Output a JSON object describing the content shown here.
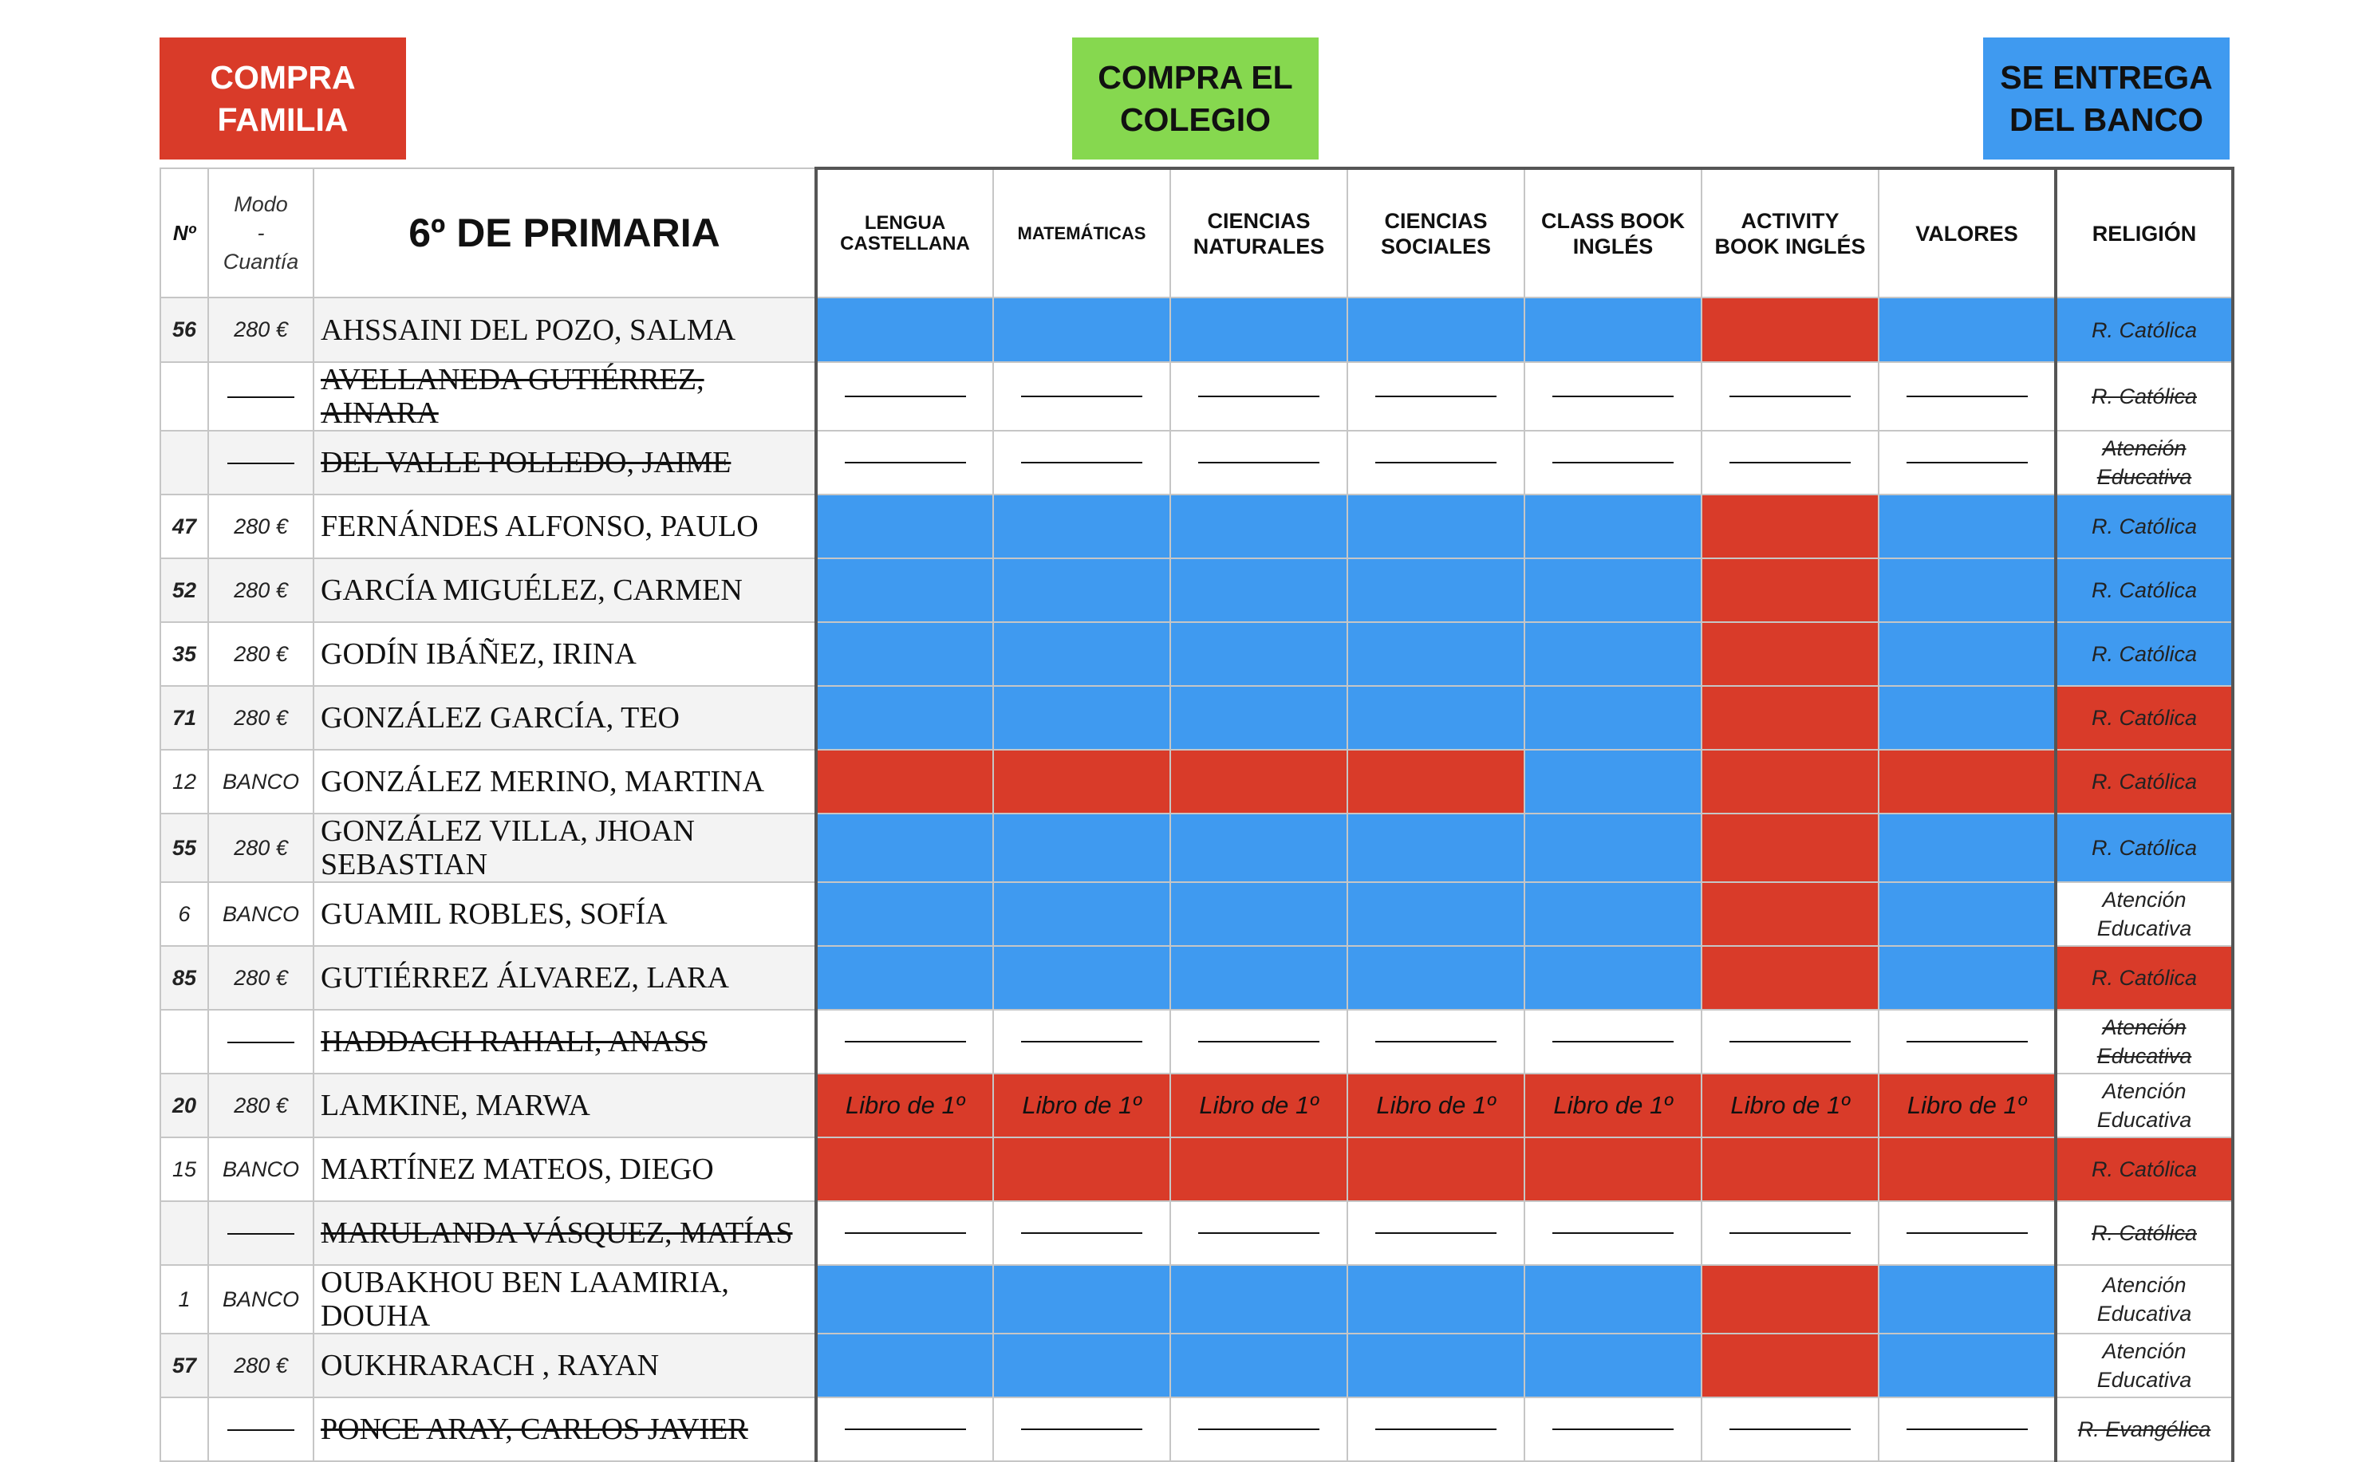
{
  "legend": {
    "family": "COMPRA\nFAMILIA",
    "school": "COMPRA EL\nCOLEGIO",
    "bank": "SE ENTREGA\nDEL BANCO"
  },
  "colors": {
    "family_red": "#d93b29",
    "school_green": "#86d84f",
    "bank_blue": "#3f9af0"
  },
  "header": {
    "no": "Nº",
    "modo": "Modo\n-\nCuantía",
    "title": "6º DE PRIMARIA",
    "subjects": [
      "LENGUA\nCASTELLANA",
      "MATEMÁTICAS",
      "CIENCIAS\nNATURALES",
      "CIENCIAS\nSOCIALES",
      "CLASS BOOK\nINGLÉS",
      "ACTIVITY\nBOOK INGLÉS",
      "VALORES"
    ],
    "religion": "RELIGIÓN"
  },
  "rows": [
    {
      "num": "56",
      "num_bold": true,
      "modo": "280 €",
      "name": "AHSSAINI DEL POZO, SALMA",
      "strike": false,
      "cells": [
        "B",
        "B",
        "B",
        "B",
        "B",
        "R",
        "B"
      ],
      "rel": "R. Católica",
      "rel_color": "B",
      "rel_strike": false
    },
    {
      "num": "",
      "num_bold": false,
      "modo": "—",
      "name": "AVELLANEDA GUTIÉRREZ,\n AINARA",
      "strike": true,
      "cells": [
        "D",
        "D",
        "D",
        "D",
        "D",
        "D",
        "D"
      ],
      "rel": "R. Católica",
      "rel_color": "",
      "rel_strike": true
    },
    {
      "num": "",
      "num_bold": false,
      "modo": "—",
      "name": "DEL VALLE POLLEDO, JAIME",
      "strike": true,
      "cells": [
        "D",
        "D",
        "D",
        "D",
        "D",
        "D",
        "D"
      ],
      "rel": "Atención\nEducativa",
      "rel_color": "",
      "rel_strike": true
    },
    {
      "num": "47",
      "num_bold": true,
      "modo": "280 €",
      "name": "FERNÁNDES ALFONSO, PAULO",
      "strike": false,
      "cells": [
        "B",
        "B",
        "B",
        "B",
        "B",
        "R",
        "B"
      ],
      "rel": "R. Católica",
      "rel_color": "B",
      "rel_strike": false
    },
    {
      "num": "52",
      "num_bold": true,
      "modo": "280 €",
      "name": "GARCÍA MIGUÉLEZ, CARMEN",
      "strike": false,
      "cells": [
        "B",
        "B",
        "B",
        "B",
        "B",
        "R",
        "B"
      ],
      "rel": "R. Católica",
      "rel_color": "B",
      "rel_strike": false
    },
    {
      "num": "35",
      "num_bold": true,
      "modo": "280 €",
      "name": "GODÍN IBÁÑEZ, IRINA",
      "strike": false,
      "cells": [
        "B",
        "B",
        "B",
        "B",
        "B",
        "R",
        "B"
      ],
      "rel": "R. Católica",
      "rel_color": "B",
      "rel_strike": false
    },
    {
      "num": "71",
      "num_bold": true,
      "modo": "280 €",
      "name": "GONZÁLEZ GARCÍA, TEO",
      "strike": false,
      "cells": [
        "B",
        "B",
        "B",
        "B",
        "B",
        "R",
        "B"
      ],
      "rel": "R. Católica",
      "rel_color": "R",
      "rel_strike": false
    },
    {
      "num": "12",
      "num_bold": false,
      "modo": "BANCO",
      "name": "GONZÁLEZ MERINO, MARTINA",
      "strike": false,
      "cells": [
        "R",
        "R",
        "R",
        "R",
        "B",
        "R",
        "R"
      ],
      "rel": "R. Católica",
      "rel_color": "R",
      "rel_strike": false
    },
    {
      "num": "55",
      "num_bold": true,
      "modo": "280 €",
      "name": "GONZÁLEZ VILLA, JHOAN\n SEBASTIAN",
      "strike": false,
      "cells": [
        "B",
        "B",
        "B",
        "B",
        "B",
        "R",
        "B"
      ],
      "rel": "R. Católica",
      "rel_color": "B",
      "rel_strike": false
    },
    {
      "num": "6",
      "num_bold": false,
      "modo": "BANCO",
      "name": "GUAMIL ROBLES, SOFÍA",
      "strike": false,
      "cells": [
        "B",
        "B",
        "B",
        "B",
        "B",
        "R",
        "B"
      ],
      "rel": "Atención\nEducativa",
      "rel_color": "",
      "rel_strike": false
    },
    {
      "num": "85",
      "num_bold": true,
      "modo": "280 €",
      "name": "GUTIÉRREZ ÁLVAREZ, LARA",
      "strike": false,
      "cells": [
        "B",
        "B",
        "B",
        "B",
        "B",
        "R",
        "B"
      ],
      "rel": "R. Católica",
      "rel_color": "R",
      "rel_strike": false
    },
    {
      "num": "",
      "num_bold": false,
      "modo": "—",
      "name": "HADDACH RAHALI, ANASS",
      "strike": true,
      "cells": [
        "D",
        "D",
        "D",
        "D",
        "D",
        "D",
        "D"
      ],
      "rel": "Atención\nEducativa",
      "rel_color": "",
      "rel_strike": true
    },
    {
      "num": "20",
      "num_bold": true,
      "modo": "280 €",
      "name": "LAMKINE, MARWA",
      "strike": false,
      "cells": [
        "T",
        "T",
        "T",
        "T",
        "T",
        "T",
        "T"
      ],
      "cell_text": "Libro de 1º",
      "rel": "Atención\nEducativa",
      "rel_color": "",
      "rel_strike": false
    },
    {
      "num": "15",
      "num_bold": false,
      "modo": "BANCO",
      "name": "MARTÍNEZ MATEOS, DIEGO",
      "strike": false,
      "cells": [
        "R",
        "R",
        "R",
        "R",
        "R",
        "R",
        "R"
      ],
      "rel": "R. Católica",
      "rel_color": "R",
      "rel_strike": false
    },
    {
      "num": "",
      "num_bold": false,
      "modo": "—",
      "name": "MARULANDA VÁSQUEZ, MATÍAS",
      "strike": true,
      "cells": [
        "D",
        "D",
        "D",
        "D",
        "D",
        "D",
        "D"
      ],
      "rel": "R. Católica",
      "rel_color": "",
      "rel_strike": true
    },
    {
      "num": "1",
      "num_bold": false,
      "modo": "BANCO",
      "name": "OUBAKHOU BEN LAAMIRIA,\nDOUHA",
      "strike": false,
      "cells": [
        "B",
        "B",
        "B",
        "B",
        "B",
        "R",
        "B"
      ],
      "rel": "Atención\nEducativa",
      "rel_color": "",
      "rel_strike": false
    },
    {
      "num": "57",
      "num_bold": true,
      "modo": "280 €",
      "name": "OUKHRARACH , RAYAN",
      "strike": false,
      "cells": [
        "B",
        "B",
        "B",
        "B",
        "B",
        "R",
        "B"
      ],
      "rel": "Atención\nEducativa",
      "rel_color": "",
      "rel_strike": false
    },
    {
      "num": "",
      "num_bold": false,
      "modo": "—",
      "name": "PONCE ARAY, CARLOS JAVIER",
      "strike": true,
      "cells": [
        "D",
        "D",
        "D",
        "D",
        "D",
        "D",
        "D"
      ],
      "rel": "R. Evangélica",
      "rel_color": "",
      "rel_strike": true
    }
  ]
}
